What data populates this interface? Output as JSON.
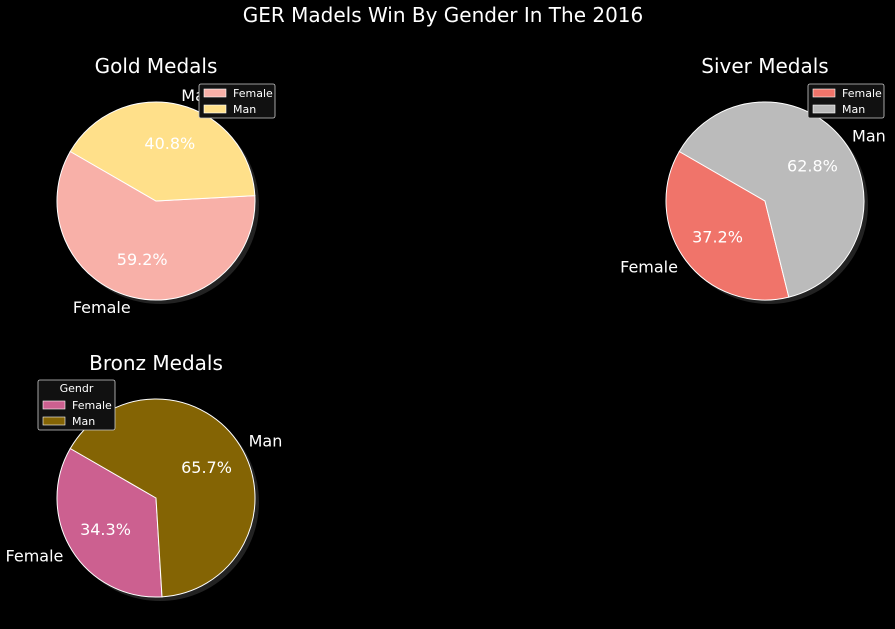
{
  "title": "GER Madels Win By Gender In The 2016",
  "chart_data": [
    {
      "type": "pie",
      "title": "Gold Medals",
      "categories": [
        "Female",
        "Man"
      ],
      "values": [
        59.2,
        40.8
      ],
      "labels": [
        "59.2%",
        "40.8%"
      ],
      "colors": [
        "#f8b0a8",
        "#ffe08a"
      ],
      "legend": {
        "title": "",
        "entries": [
          "Female",
          "Man"
        ],
        "placement": "top-right"
      }
    },
    {
      "type": "pie",
      "title": "Siver Medals",
      "categories": [
        "Female",
        "Man"
      ],
      "values": [
        37.2,
        62.8
      ],
      "labels": [
        "37.2%",
        "62.8%"
      ],
      "colors": [
        "#f0746a",
        "#bbbbbb"
      ],
      "legend": {
        "title": "",
        "entries": [
          "Female",
          "Man"
        ],
        "placement": "top-right"
      }
    },
    {
      "type": "pie",
      "title": "Bronz Medals",
      "categories": [
        "Female",
        "Man"
      ],
      "values": [
        34.3,
        65.7
      ],
      "labels": [
        "34.3%",
        "65.7%"
      ],
      "colors": [
        "#cc6090",
        "#846404"
      ],
      "legend": {
        "title": "Gendr",
        "entries": [
          "Female",
          "Man"
        ],
        "placement": "top-left"
      }
    }
  ]
}
